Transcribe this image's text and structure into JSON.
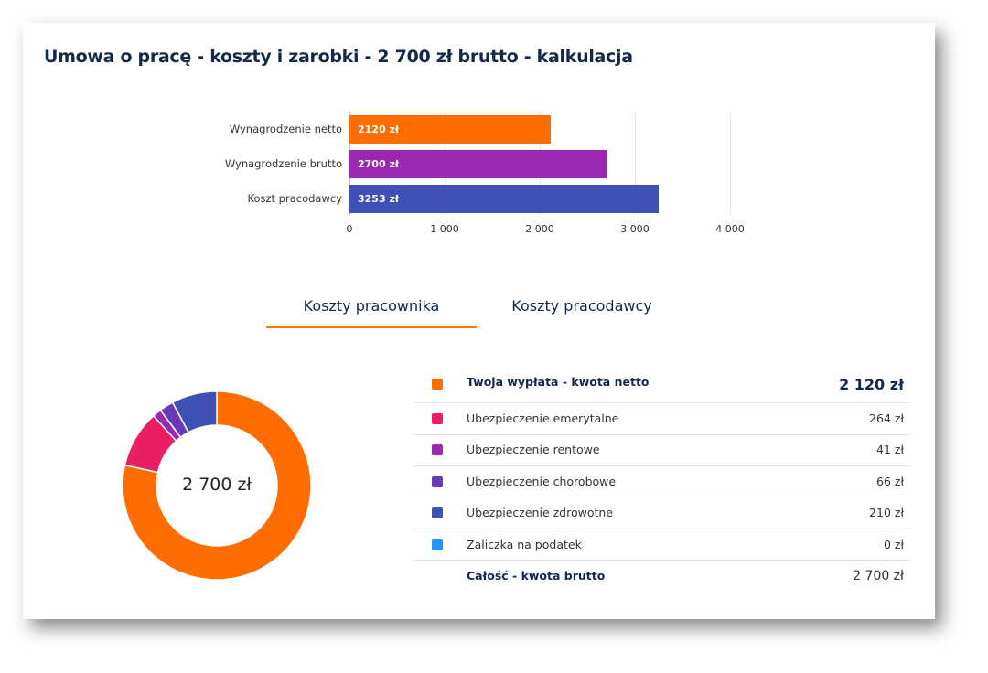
{
  "title": "Umowa o pracę - koszty i zarobki - 2 700 zł brutto - kalkulacja",
  "chart_data": {
    "type": "bar",
    "orientation": "horizontal",
    "categories": [
      "Wynagrodzenie netto",
      "Wynagrodzenie brutto",
      "Koszt pracodawcy"
    ],
    "values": [
      2120,
      2700,
      3253
    ],
    "data_labels": [
      "2120 zł",
      "2700 zł",
      "3253 zł"
    ],
    "colors": [
      "#ff6d00",
      "#9c27b0",
      "#3f51b5"
    ],
    "x_ticks": [
      "0",
      "1 000",
      "2 000",
      "3 000",
      "4 000"
    ],
    "xlim": [
      0,
      4000
    ],
    "grid": true
  },
  "tabs": [
    {
      "label": "Koszty pracownika",
      "active": true
    },
    {
      "label": "Koszty pracodawcy",
      "active": false
    }
  ],
  "accent": "#f57c00",
  "donut": {
    "center_label": "2 700 zł"
  },
  "breakdown": [
    {
      "label": "Twoja wypłata - kwota netto",
      "value": "2 120 zł",
      "amount": 2120,
      "color": "#ff6d00",
      "bold": true
    },
    {
      "label": "Ubezpieczenie emerytalne",
      "value": "264 zł",
      "amount": 264,
      "color": "#e91e63"
    },
    {
      "label": "Ubezpieczenie rentowe",
      "value": "41 zł",
      "amount": 41,
      "color": "#9c27b0"
    },
    {
      "label": "Ubezpieczenie chorobowe",
      "value": "66 zł",
      "amount": 66,
      "color": "#673ab7"
    },
    {
      "label": "Ubezpieczenie zdrowotne",
      "value": "210 zł",
      "amount": 210,
      "color": "#3f51b5"
    },
    {
      "label": "Zaliczka na podatek",
      "value": "0 zł",
      "amount": 0,
      "color": "#2196f3"
    }
  ],
  "total": {
    "label": "Całość - kwota brutto",
    "value": "2 700 zł"
  }
}
